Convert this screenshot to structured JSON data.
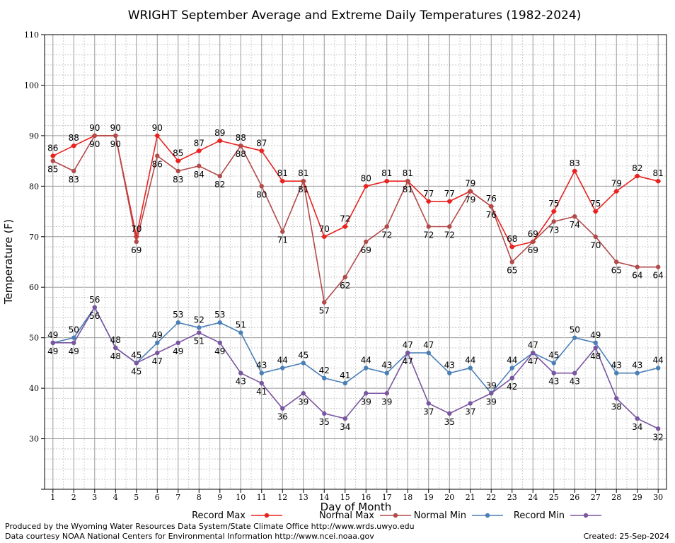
{
  "page": {
    "footer_left_1": "Produced by the Wyoming Water Resources Data System/State Climate Office http://www.wrds.uwyo.edu",
    "footer_left_2": "Data courtesy NOAA National Centers for Environmental Information http://www.ncei.noaa.gov",
    "footer_right": "Created:  25-Sep-2024"
  },
  "chart_data": {
    "type": "line",
    "title": "WRIGHT September Average and Extreme Daily Temperatures (1982-2024)",
    "xlabel": "Day of Month",
    "ylabel": "Temperature (F)",
    "xlim": [
      0.6,
      30.4
    ],
    "ylim": [
      20,
      110
    ],
    "yticks": [
      20,
      30,
      40,
      50,
      60,
      70,
      80,
      90,
      100,
      110
    ],
    "ytick_labels": [
      "",
      "30",
      "40",
      "50",
      "60",
      "70",
      "80",
      "90",
      "100",
      "110"
    ],
    "x": [
      1,
      2,
      3,
      4,
      5,
      6,
      7,
      8,
      9,
      10,
      11,
      12,
      13,
      14,
      15,
      16,
      17,
      18,
      19,
      20,
      21,
      22,
      23,
      24,
      25,
      26,
      27,
      28,
      29,
      30
    ],
    "grid": true,
    "legend_position": "bottom",
    "series": [
      {
        "name": "Record Max",
        "color": "#e8221f",
        "values": [
          86,
          88,
          90,
          90,
          70,
          90,
          85,
          87,
          89,
          88,
          87,
          81,
          81,
          70,
          72,
          80,
          81,
          81,
          77,
          77,
          79,
          76,
          68,
          69,
          75,
          83,
          75,
          79,
          82,
          81
        ]
      },
      {
        "name": "Normal Max",
        "color": "#b24a4a",
        "values": [
          85,
          83,
          90,
          90,
          69,
          86,
          83,
          84,
          82,
          88,
          80,
          71,
          81,
          57,
          62,
          69,
          72,
          81,
          72,
          72,
          79,
          76,
          65,
          69,
          73,
          74,
          70,
          65,
          64,
          64
        ]
      },
      {
        "name": "Normal Min",
        "color": "#4a7fb5",
        "values": [
          49,
          50,
          56,
          48,
          45,
          49,
          53,
          52,
          53,
          51,
          43,
          44,
          45,
          42,
          41,
          44,
          43,
          47,
          47,
          43,
          44,
          39,
          44,
          47,
          45,
          50,
          49,
          43,
          43,
          44
        ]
      },
      {
        "name": "Record Min",
        "color": "#7a55a0",
        "values": [
          49,
          49,
          56,
          48,
          45,
          47,
          49,
          51,
          49,
          43,
          41,
          36,
          39,
          35,
          34,
          39,
          39,
          47,
          37,
          35,
          37,
          39,
          42,
          47,
          43,
          43,
          48,
          38,
          34,
          32
        ]
      }
    ]
  }
}
